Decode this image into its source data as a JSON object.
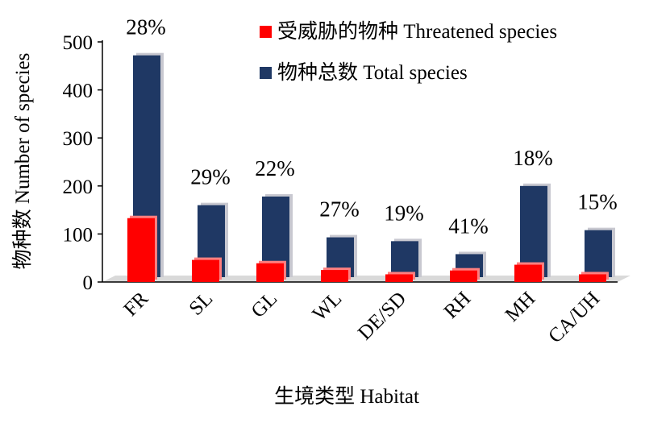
{
  "chart_data": {
    "type": "bar",
    "categories": [
      "FR",
      "SL",
      "GL",
      "WL",
      "DE/SD",
      "RH",
      "MH",
      "CA/UH"
    ],
    "series": [
      {
        "name": "受威胁的物种 Threatened species",
        "color": "#ff0000",
        "values": [
          133,
          46,
          39,
          25,
          16,
          24,
          36,
          16
        ]
      },
      {
        "name": "物种总数 Total species",
        "color": "#1f3864",
        "values": [
          472,
          160,
          178,
          93,
          85,
          58,
          200,
          108
        ]
      }
    ],
    "percent_labels": [
      "28%",
      "29%",
      "22%",
      "27%",
      "19%",
      "41%",
      "18%",
      "15%"
    ],
    "ylabel": "物种数 Number of species",
    "xlabel": "生境类型 Habitat",
    "ylim": [
      0,
      500
    ],
    "yticks": [
      0,
      100,
      200,
      300,
      400,
      500
    ],
    "grid": false,
    "legend_position": "top-right"
  }
}
